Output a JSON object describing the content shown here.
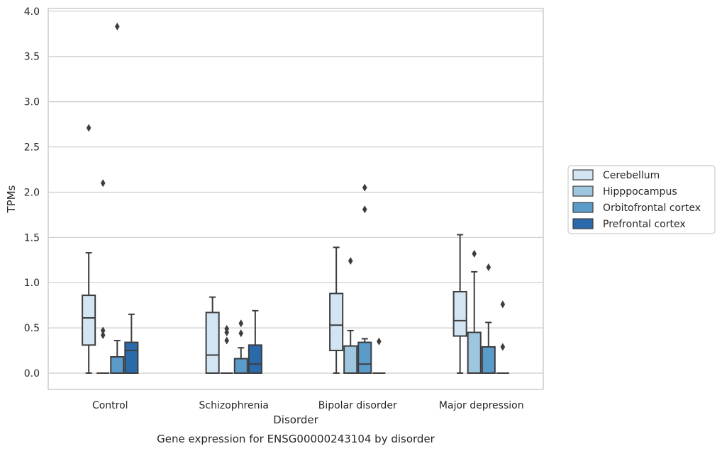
{
  "caption": "Gene expression for ENSG00000243104 by disorder",
  "chart_data": {
    "type": "box",
    "title": "",
    "xlabel": "Disorder",
    "ylabel": "TPMs",
    "ylim": [
      -0.18,
      4.03
    ],
    "yticks": [
      0.0,
      0.5,
      1.0,
      1.5,
      2.0,
      2.5,
      3.0,
      3.5,
      4.0
    ],
    "ytick_labels": [
      "0.0",
      "0.5",
      "1.0",
      "1.5",
      "2.0",
      "2.5",
      "3.0",
      "3.5",
      "4.0"
    ],
    "grid": "horizontal",
    "legend_position": "right",
    "categories": [
      "Control",
      "Schizophrenia",
      "Bipolar disorder",
      "Major depression"
    ],
    "series": [
      {
        "name": "Cerebellum",
        "color": "#d3e4f3",
        "boxes": [
          {
            "whisker_low": 0.0,
            "q1": 0.31,
            "median": 0.61,
            "q3": 0.86,
            "whisker_high": 1.33,
            "outliers": [
              2.71
            ]
          },
          {
            "whisker_low": 0.0,
            "q1": 0.0,
            "median": 0.2,
            "q3": 0.67,
            "whisker_high": 0.84,
            "outliers": []
          },
          {
            "whisker_low": 0.0,
            "q1": 0.25,
            "median": 0.53,
            "q3": 0.88,
            "whisker_high": 1.39,
            "outliers": []
          },
          {
            "whisker_low": 0.0,
            "q1": 0.41,
            "median": 0.58,
            "q3": 0.9,
            "whisker_high": 1.53,
            "outliers": []
          }
        ]
      },
      {
        "name": "Hipppocampus",
        "color": "#9fc6df",
        "boxes": [
          {
            "whisker_low": 0.0,
            "q1": 0.0,
            "median": 0.0,
            "q3": 0.0,
            "whisker_high": 0.0,
            "outliers": [
              0.42,
              0.47,
              2.1
            ]
          },
          {
            "whisker_low": 0.0,
            "q1": 0.0,
            "median": 0.0,
            "q3": 0.0,
            "whisker_high": 0.0,
            "outliers": [
              0.36,
              0.45,
              0.49
            ]
          },
          {
            "whisker_low": 0.0,
            "q1": 0.0,
            "median": 0.0,
            "q3": 0.3,
            "whisker_high": 0.47,
            "outliers": [
              1.24
            ]
          },
          {
            "whisker_low": 0.0,
            "q1": 0.0,
            "median": 0.0,
            "q3": 0.45,
            "whisker_high": 1.12,
            "outliers": [
              1.32
            ]
          }
        ]
      },
      {
        "name": "Orbitofrontal cortex",
        "color": "#5b9bc9",
        "boxes": [
          {
            "whisker_low": 0.0,
            "q1": 0.0,
            "median": 0.0,
            "q3": 0.18,
            "whisker_high": 0.36,
            "outliers": [
              3.83
            ]
          },
          {
            "whisker_low": 0.0,
            "q1": 0.0,
            "median": 0.0,
            "q3": 0.16,
            "whisker_high": 0.28,
            "outliers": [
              0.44,
              0.55
            ]
          },
          {
            "whisker_low": 0.0,
            "q1": 0.0,
            "median": 0.1,
            "q3": 0.34,
            "whisker_high": 0.38,
            "outliers": [
              1.81,
              2.05
            ]
          },
          {
            "whisker_low": 0.0,
            "q1": 0.0,
            "median": 0.0,
            "q3": 0.29,
            "whisker_high": 0.56,
            "outliers": [
              1.17
            ]
          }
        ]
      },
      {
        "name": "Prefrontal cortex",
        "color": "#2a6aab",
        "boxes": [
          {
            "whisker_low": 0.0,
            "q1": 0.0,
            "median": 0.25,
            "q3": 0.34,
            "whisker_high": 0.65,
            "outliers": []
          },
          {
            "whisker_low": 0.0,
            "q1": 0.0,
            "median": 0.1,
            "q3": 0.31,
            "whisker_high": 0.69,
            "outliers": []
          },
          {
            "whisker_low": 0.0,
            "q1": 0.0,
            "median": 0.0,
            "q3": 0.0,
            "whisker_high": 0.0,
            "outliers": [
              0.35
            ]
          },
          {
            "whisker_low": 0.0,
            "q1": 0.0,
            "median": 0.0,
            "q3": 0.0,
            "whisker_high": 0.0,
            "outliers": [
              0.29,
              0.76
            ]
          }
        ]
      }
    ]
  }
}
